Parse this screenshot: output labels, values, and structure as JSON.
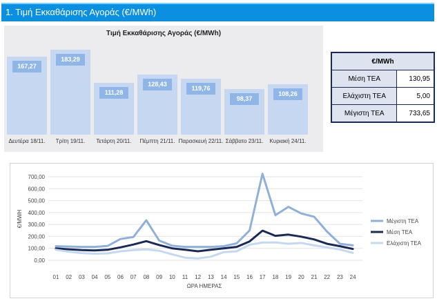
{
  "banner": {
    "title": "1. Τιμή Εκκαθάρισης Αγοράς (€/MWh)"
  },
  "colors": {
    "banner": "#0b8fe0",
    "bar": "#c6d8f1",
    "bar_label": "#8fb6e6",
    "max_series": "#8fb0d8",
    "mean_series": "#1a2a55",
    "min_series": "#c4d8f0"
  },
  "stats_table": {
    "header": "€/MWh",
    "rows": [
      {
        "label": "Μέση ΤΕΑ",
        "value": "130,95"
      },
      {
        "label": "Ελάχιστη ΤΕΑ",
        "value": "5,00"
      },
      {
        "label": "Μέγιστη ΤΕΑ",
        "value": "733,65"
      }
    ]
  },
  "chart_data": [
    {
      "type": "bar",
      "title": "Τιμή Εκκαθάρισης Αγοράς (€/MWh)",
      "categories": [
        "Δευτέρα 18/11.",
        "Τρίτη 19/11.",
        "Τετάρτη 20/11.",
        "Πέμπτη 21/11.",
        "Παρασκευή 22/11.",
        "Σάββατο 23/11.",
        "Κυριακή 24/11."
      ],
      "values": [
        167.27,
        183.29,
        111.28,
        128.43,
        119.76,
        98.37,
        108.26
      ],
      "value_labels": [
        "167,27",
        "183,29",
        "111,28",
        "128,43",
        "119,76",
        "98,37",
        "108,26"
      ],
      "ylim": [
        0,
        190
      ]
    },
    {
      "type": "line",
      "xlabel": "ΩΡΑ ΗΜΕΡΑΣ",
      "ylabel": "€/MWH",
      "x": [
        "01",
        "02",
        "03",
        "04",
        "05",
        "06",
        "07",
        "08",
        "09",
        "10",
        "11",
        "12",
        "13",
        "14",
        "15",
        "16",
        "17",
        "18",
        "19",
        "20",
        "21",
        "22",
        "23",
        "24"
      ],
      "yticks": [
        "0,00",
        "100,00",
        "200,00",
        "300,00",
        "400,00",
        "500,00",
        "600,00",
        "700,00"
      ],
      "ylim": [
        0,
        700
      ],
      "legend_position": "right",
      "series": [
        {
          "name": "Μέγιστη ΤΕΑ",
          "values": [
            118,
            115,
            112,
            112,
            120,
            178,
            195,
            335,
            165,
            122,
            112,
            112,
            112,
            118,
            142,
            250,
            725,
            378,
            448,
            392,
            365,
            240,
            138,
            125
          ]
        },
        {
          "name": "Μέση ΤΕΑ",
          "values": [
            100,
            92,
            85,
            83,
            88,
            108,
            132,
            160,
            128,
            100,
            88,
            75,
            88,
            100,
            112,
            158,
            248,
            205,
            215,
            198,
            175,
            138,
            118,
            95
          ]
        },
        {
          "name": "Ελάχιστη ΤΕΑ",
          "values": [
            88,
            72,
            60,
            55,
            58,
            75,
            85,
            92,
            80,
            50,
            22,
            15,
            30,
            68,
            75,
            130,
            148,
            150,
            138,
            145,
            125,
            108,
            90,
            62
          ]
        }
      ]
    }
  ]
}
